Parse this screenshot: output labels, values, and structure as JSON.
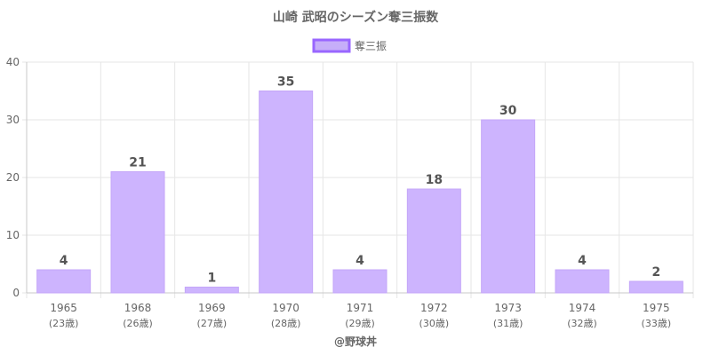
{
  "colors": {
    "bar_fill": "#cdb4fe",
    "bar_stroke": "#c4a6f8",
    "legend_fill": "#c6aef9",
    "legend_stroke": "#9966ff",
    "grid": "#e6e6e6",
    "axis": "#c8c8c8",
    "text": "#666666"
  },
  "chart_data": {
    "type": "bar",
    "title": "山崎 武昭のシーズン奪三振数",
    "categories": [
      "1965",
      "1968",
      "1969",
      "1970",
      "1971",
      "1972",
      "1973",
      "1974",
      "1975"
    ],
    "sublabels": [
      "(23歳)",
      "(26歳)",
      "(27歳)",
      "(28歳)",
      "(29歳)",
      "(30歳)",
      "(31歳)",
      "(32歳)",
      "(33歳)"
    ],
    "series": [
      {
        "name": "奪三振",
        "values": [
          4,
          21,
          1,
          35,
          4,
          18,
          30,
          4,
          2
        ]
      }
    ],
    "ylim": [
      0,
      40
    ],
    "yticks": [
      0,
      10,
      20,
      30,
      40
    ],
    "grid": true,
    "legend": "top-center",
    "credit": "@野球丼"
  }
}
